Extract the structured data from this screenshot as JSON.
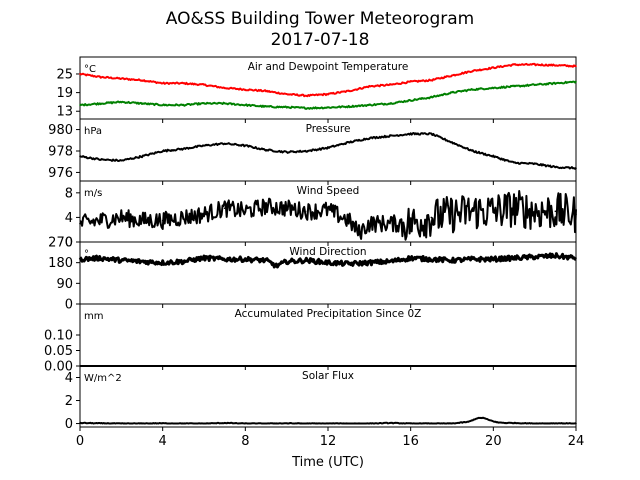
{
  "figure": {
    "title": "AO&SS Building Tower Meteorogram",
    "subtitle": "2017-07-18",
    "xlabel": "Time (UTC)",
    "x_ticks": [
      "0",
      "4",
      "8",
      "12",
      "16",
      "20",
      "24"
    ]
  },
  "chart_data": [
    {
      "type": "line",
      "title": "Air and Dewpoint Temperature",
      "unit": "°C",
      "xlabel": "Time (UTC)",
      "xlim": [
        0,
        24
      ],
      "ylim": [
        10.5,
        29.5
      ],
      "y_ticks": [
        13,
        19,
        25
      ],
      "grid": false,
      "series": [
        {
          "color": "#ff0000",
          "x": [
            0,
            1,
            2,
            3,
            4,
            5,
            6,
            7,
            8,
            9,
            10,
            11,
            12,
            13,
            14,
            15,
            16,
            17,
            18,
            19,
            20,
            21,
            22,
            23,
            24
          ],
          "y": [
            25,
            24,
            23.5,
            23,
            22,
            22,
            21.5,
            20.5,
            20,
            19.5,
            18.5,
            18,
            18.5,
            19.5,
            21,
            21.5,
            22.5,
            23,
            24.5,
            26,
            27,
            28,
            28,
            27.8,
            27.5
          ]
        },
        {
          "color": "#008000",
          "x": [
            0,
            1,
            2,
            3,
            4,
            5,
            6,
            7,
            8,
            9,
            10,
            11,
            12,
            13,
            14,
            15,
            16,
            17,
            18,
            19,
            20,
            21,
            22,
            23,
            24
          ],
          "y": [
            15,
            15.5,
            16,
            15.5,
            15,
            15,
            15.5,
            15.5,
            15,
            14.5,
            14.3,
            14,
            14.2,
            14.5,
            15,
            15.5,
            16.5,
            17.5,
            19,
            20,
            20.5,
            21,
            21.5,
            22,
            22.5
          ]
        }
      ]
    },
    {
      "type": "line",
      "title": "Pressure",
      "unit": "hPa",
      "xlabel": "Time (UTC)",
      "xlim": [
        0,
        24
      ],
      "ylim": [
        975.2,
        980.8
      ],
      "y_ticks": [
        976,
        978,
        980
      ],
      "grid": false,
      "series": [
        {
          "color": "#000000",
          "x": [
            0,
            1,
            2,
            3,
            4,
            5,
            6,
            7,
            8,
            9,
            10,
            11,
            12,
            13,
            14,
            15,
            16,
            17,
            18,
            19,
            20,
            21,
            22,
            23,
            24
          ],
          "y": [
            977.5,
            977.2,
            977.1,
            977.5,
            978,
            978.2,
            978.5,
            978.7,
            978.5,
            978.1,
            977.9,
            978,
            978.3,
            978.8,
            979.2,
            979.4,
            979.6,
            979.6,
            978.8,
            978,
            977.5,
            976.9,
            976.8,
            976.5,
            976.4
          ]
        }
      ]
    },
    {
      "type": "line",
      "title": "Wind Speed",
      "unit": "m/s",
      "xlabel": "Time (UTC)",
      "xlim": [
        0,
        24
      ],
      "ylim": [
        0,
        9.6
      ],
      "y_ticks": [
        0,
        4,
        8
      ],
      "grid": false,
      "series": [
        {
          "color": "#000000",
          "x": [
            0,
            1,
            2,
            3,
            4,
            5,
            6,
            7,
            8,
            9,
            10,
            11,
            12,
            13,
            13.5,
            14,
            15,
            16,
            17,
            18,
            19,
            20,
            21,
            22,
            23,
            24
          ],
          "y": [
            3,
            3.5,
            4,
            3.5,
            3.5,
            4,
            4.5,
            5.5,
            5,
            5.8,
            5.5,
            5,
            5.2,
            3.5,
            1.5,
            3,
            3,
            3,
            4,
            4.5,
            5,
            5,
            5.5,
            5,
            5,
            4.5
          ]
        }
      ]
    },
    {
      "type": "scatter",
      "title": "Wind Direction",
      "unit": "°",
      "xlabel": "Time (UTC)",
      "xlim": [
        0,
        24
      ],
      "ylim": [
        0,
        270
      ],
      "y_ticks": [
        0,
        90,
        180,
        270
      ],
      "grid": false,
      "series": [
        {
          "color": "#000000",
          "x": [
            0,
            1,
            2,
            3,
            4,
            5,
            6,
            7,
            8,
            9,
            9.5,
            10,
            11,
            12,
            13,
            14,
            15,
            16,
            17,
            18,
            19,
            20,
            21,
            22,
            23,
            24
          ],
          "y": [
            195,
            200,
            190,
            185,
            180,
            185,
            200,
            195,
            195,
            190,
            165,
            185,
            190,
            180,
            175,
            180,
            185,
            200,
            195,
            190,
            195,
            195,
            200,
            205,
            210,
            200
          ]
        }
      ]
    },
    {
      "type": "line",
      "title": "Accumulated Precipitation Since 0Z",
      "unit": "mm",
      "xlabel": "Time (UTC)",
      "xlim": [
        0,
        24
      ],
      "ylim": [
        0,
        0.2
      ],
      "y_ticks": [
        0.0,
        0.05,
        0.1
      ],
      "y_tick_labels": [
        "0.00",
        "0.05",
        "0.10"
      ],
      "grid": false,
      "series": [
        {
          "color": "#000000",
          "x": [
            0,
            24
          ],
          "y": [
            0,
            0
          ]
        }
      ]
    },
    {
      "type": "line",
      "title": "Solar Flux",
      "unit": "W/m^2",
      "xlabel": "Time (UTC)",
      "xlim": [
        0,
        24
      ],
      "ylim": [
        -0.3,
        5
      ],
      "y_ticks": [
        0,
        2,
        4
      ],
      "grid": false,
      "series": [
        {
          "color": "#000000",
          "x": [
            0,
            1,
            2,
            3,
            4,
            5,
            6,
            7,
            8,
            9,
            10,
            11,
            12,
            13,
            14,
            15,
            16,
            17,
            18,
            18.8,
            19.2,
            19.5,
            19.8,
            20.2,
            20.6,
            21,
            22,
            23,
            24
          ],
          "y": [
            0.05,
            0.02,
            0,
            0,
            0.02,
            0,
            0,
            0.05,
            0,
            0,
            0.02,
            0,
            0,
            0,
            0,
            0.05,
            0,
            0,
            0,
            0.15,
            0.45,
            0.5,
            0.3,
            0.1,
            0.05,
            0.05,
            0,
            0.02,
            0
          ]
        }
      ]
    }
  ]
}
